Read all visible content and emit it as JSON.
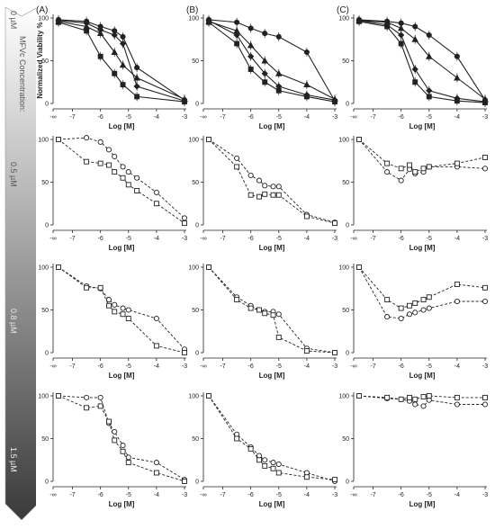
{
  "sidebar": {
    "title": "MFVc Concentration:",
    "rows": [
      "0 µM",
      "0.5 µM",
      "0.8 µM",
      "1.5 µM"
    ]
  },
  "columns": [
    "(A)",
    "(B)",
    "(C)"
  ],
  "axis": {
    "ylabel": "Normalized Viability %",
    "xlabel": "Log [M]",
    "xticks": [
      "-∞",
      "-7",
      "-6",
      "-5",
      "-4",
      "-3"
    ],
    "yticks": [
      "0",
      "50",
      "100"
    ]
  },
  "colors": {
    "line": "#222222",
    "marker_fill": "#ffffff",
    "axis": "#222222"
  },
  "chart_data": [
    {
      "type": "line",
      "title": "(A) 0 µM",
      "xlim": [
        -7.5,
        -3
      ],
      "ylim": [
        0,
        100
      ],
      "series": [
        {
          "marker": "circle",
          "x": [
            -7.5,
            -6.5,
            -6,
            -5.5,
            -5.2,
            -4.7,
            -3
          ],
          "y": [
            98,
            96,
            90,
            85,
            78,
            42,
            4
          ]
        },
        {
          "marker": "triangle",
          "x": [
            -7.5,
            -6.5,
            -6,
            -5.5,
            -5.2,
            -4.7,
            -3
          ],
          "y": [
            96,
            90,
            82,
            60,
            45,
            30,
            5
          ]
        },
        {
          "marker": "square",
          "x": [
            -7.5,
            -6.5,
            -6,
            -5.5,
            -5.2,
            -4.7,
            -3
          ],
          "y": [
            95,
            85,
            55,
            35,
            22,
            8,
            2
          ]
        },
        {
          "marker": "diamond",
          "x": [
            -7.5,
            -6.5,
            -6,
            -5.5,
            -5.2,
            -4.7,
            -3
          ],
          "y": [
            97,
            94,
            86,
            80,
            70,
            20,
            3
          ]
        }
      ]
    },
    {
      "type": "line",
      "title": "(B) 0 µM",
      "xlim": [
        -7.5,
        -3
      ],
      "ylim": [
        0,
        100
      ],
      "series": [
        {
          "marker": "circle",
          "x": [
            -7.5,
            -6.5,
            -6,
            -5.5,
            -5,
            -4,
            -3
          ],
          "y": [
            98,
            95,
            88,
            82,
            78,
            60,
            3
          ]
        },
        {
          "marker": "triangle",
          "x": [
            -7.5,
            -6.5,
            -6,
            -5.5,
            -5,
            -4,
            -3
          ],
          "y": [
            96,
            85,
            68,
            50,
            35,
            22,
            5
          ]
        },
        {
          "marker": "square",
          "x": [
            -7.5,
            -6.5,
            -6,
            -5.5,
            -5,
            -4,
            -3
          ],
          "y": [
            95,
            70,
            40,
            25,
            15,
            8,
            2
          ]
        },
        {
          "marker": "diamond",
          "x": [
            -7.5,
            -6.5,
            -6,
            -5.5,
            -5,
            -4,
            -3
          ],
          "y": [
            97,
            80,
            55,
            35,
            20,
            10,
            4
          ]
        }
      ]
    },
    {
      "type": "line",
      "title": "(C) 0 µM",
      "xlim": [
        -7.5,
        -3
      ],
      "ylim": [
        0,
        100
      ],
      "series": [
        {
          "marker": "circle",
          "x": [
            -7.5,
            -6.5,
            -6,
            -5.5,
            -5,
            -4,
            -3
          ],
          "y": [
            98,
            96,
            94,
            90,
            80,
            55,
            4
          ]
        },
        {
          "marker": "triangle",
          "x": [
            -7.5,
            -6.5,
            -6,
            -5.5,
            -5,
            -4,
            -3
          ],
          "y": [
            97,
            95,
            88,
            75,
            55,
            30,
            5
          ]
        },
        {
          "marker": "square",
          "x": [
            -7.5,
            -6.5,
            -6,
            -5.5,
            -5,
            -4,
            -3
          ],
          "y": [
            96,
            90,
            70,
            25,
            8,
            3,
            1
          ]
        },
        {
          "marker": "diamond",
          "x": [
            -7.5,
            -6.5,
            -6,
            -5.5,
            -5,
            -4,
            -3
          ],
          "y": [
            97,
            92,
            80,
            40,
            15,
            6,
            2
          ]
        }
      ]
    },
    {
      "type": "line",
      "title": "(A) 0.5 µM",
      "xlim": [
        -7.5,
        -3
      ],
      "ylim": [
        0,
        100
      ],
      "series": [
        {
          "marker": "circle",
          "x": [
            -7.5,
            -6.5,
            -6,
            -5.7,
            -5.5,
            -5.2,
            -5,
            -4.7,
            -4,
            -3
          ],
          "y": [
            100,
            102,
            97,
            88,
            80,
            68,
            62,
            55,
            38,
            8
          ]
        },
        {
          "marker": "square",
          "x": [
            -7.5,
            -6.5,
            -6,
            -5.7,
            -5.5,
            -5.2,
            -5,
            -4.7,
            -4,
            -3
          ],
          "y": [
            100,
            74,
            72,
            70,
            62,
            55,
            47,
            40,
            25,
            2
          ]
        }
      ]
    },
    {
      "type": "line",
      "title": "(B) 0.5 µM",
      "xlim": [
        -7.5,
        -3
      ],
      "ylim": [
        0,
        100
      ],
      "series": [
        {
          "marker": "circle",
          "x": [
            -7.5,
            -6.5,
            -6,
            -5.7,
            -5.5,
            -5.2,
            -5,
            -4,
            -3
          ],
          "y": [
            100,
            78,
            58,
            52,
            46,
            45,
            45,
            12,
            3
          ]
        },
        {
          "marker": "square",
          "x": [
            -7.5,
            -6.5,
            -6,
            -5.7,
            -5.5,
            -5.2,
            -5,
            -4,
            -3
          ],
          "y": [
            100,
            68,
            35,
            33,
            36,
            35,
            35,
            10,
            2
          ]
        }
      ]
    },
    {
      "type": "line",
      "title": "(C) 0.5 µM",
      "xlim": [
        -7.5,
        -3
      ],
      "ylim": [
        0,
        100
      ],
      "series": [
        {
          "marker": "circle",
          "x": [
            -7.5,
            -6.5,
            -6,
            -5.7,
            -5.5,
            -5.2,
            -5,
            -4,
            -3
          ],
          "y": [
            100,
            62,
            52,
            65,
            60,
            62,
            68,
            68,
            66
          ]
        },
        {
          "marker": "square",
          "x": [
            -7.5,
            -6.5,
            -6,
            -5.7,
            -5.5,
            -5.2,
            -5,
            -4,
            -3
          ],
          "y": [
            100,
            72,
            66,
            70,
            62,
            66,
            68,
            72,
            79
          ]
        }
      ]
    },
    {
      "type": "line",
      "title": "(A) 0.8 µM",
      "xlim": [
        -7.5,
        -3
      ],
      "ylim": [
        0,
        100
      ],
      "series": [
        {
          "marker": "circle",
          "x": [
            -7.5,
            -6.5,
            -6,
            -5.7,
            -5.5,
            -5.2,
            -5,
            -4,
            -3
          ],
          "y": [
            100,
            78,
            75,
            62,
            56,
            52,
            50,
            40,
            4
          ]
        },
        {
          "marker": "square",
          "x": [
            -7.5,
            -6.5,
            -6,
            -5.7,
            -5.5,
            -5.2,
            -5,
            -4,
            -3
          ],
          "y": [
            100,
            76,
            76,
            55,
            48,
            45,
            40,
            8,
            0
          ]
        }
      ]
    },
    {
      "type": "line",
      "title": "(B) 0.8 µM",
      "xlim": [
        -7.5,
        -3
      ],
      "ylim": [
        0,
        100
      ],
      "series": [
        {
          "marker": "circle",
          "x": [
            -7.5,
            -6.5,
            -6,
            -5.7,
            -5.5,
            -5.2,
            -5,
            -4,
            -3
          ],
          "y": [
            100,
            65,
            55,
            50,
            48,
            48,
            45,
            5,
            0
          ]
        },
        {
          "marker": "square",
          "x": [
            -7.5,
            -6.5,
            -6,
            -5.7,
            -5.5,
            -5.2,
            -5,
            -4,
            -3
          ],
          "y": [
            100,
            62,
            52,
            50,
            46,
            44,
            18,
            2,
            0
          ]
        }
      ]
    },
    {
      "type": "line",
      "title": "(C) 0.8 µM",
      "xlim": [
        -7.5,
        -3
      ],
      "ylim": [
        0,
        100
      ],
      "series": [
        {
          "marker": "circle",
          "x": [
            -7.5,
            -6.5,
            -6,
            -5.7,
            -5.5,
            -5.2,
            -5,
            -4,
            -3
          ],
          "y": [
            100,
            42,
            40,
            45,
            47,
            50,
            52,
            60,
            60
          ]
        },
        {
          "marker": "square",
          "x": [
            -7.5,
            -6.5,
            -6,
            -5.7,
            -5.5,
            -5.2,
            -5,
            -4,
            -3
          ],
          "y": [
            100,
            62,
            52,
            55,
            58,
            62,
            65,
            80,
            76
          ]
        }
      ]
    },
    {
      "type": "line",
      "title": "(A) 1.5 µM",
      "xlim": [
        -7.5,
        -3
      ],
      "ylim": [
        0,
        100
      ],
      "series": [
        {
          "marker": "circle",
          "x": [
            -7.5,
            -6.5,
            -6,
            -5.7,
            -5.5,
            -5.2,
            -5,
            -4,
            -3
          ],
          "y": [
            100,
            98,
            98,
            68,
            58,
            42,
            28,
            22,
            2
          ]
        },
        {
          "marker": "square",
          "x": [
            -7.5,
            -6.5,
            -6,
            -5.7,
            -5.5,
            -5.2,
            -5,
            -4,
            -3
          ],
          "y": [
            100,
            86,
            88,
            70,
            48,
            35,
            22,
            10,
            0
          ]
        }
      ]
    },
    {
      "type": "line",
      "title": "(B) 1.5 µM",
      "xlim": [
        -7.5,
        -3
      ],
      "ylim": [
        0,
        100
      ],
      "series": [
        {
          "marker": "circle",
          "x": [
            -7.5,
            -6.5,
            -6,
            -5.7,
            -5.5,
            -5.2,
            -5,
            -4,
            -3
          ],
          "y": [
            100,
            55,
            40,
            30,
            25,
            22,
            20,
            10,
            0
          ]
        },
        {
          "marker": "square",
          "x": [
            -7.5,
            -6.5,
            -6,
            -5.7,
            -5.5,
            -5.2,
            -5,
            -4,
            -3
          ],
          "y": [
            100,
            50,
            38,
            25,
            18,
            15,
            10,
            5,
            2
          ]
        }
      ]
    },
    {
      "type": "line",
      "title": "(C) 1.5 µM",
      "xlim": [
        -7.5,
        -3
      ],
      "ylim": [
        0,
        100
      ],
      "series": [
        {
          "marker": "circle",
          "x": [
            -7.5,
            -6.5,
            -6,
            -5.7,
            -5.5,
            -5.2,
            -5,
            -4,
            -3
          ],
          "y": [
            100,
            97,
            96,
            94,
            90,
            88,
            95,
            90,
            90
          ]
        },
        {
          "marker": "square",
          "x": [
            -7.5,
            -6.5,
            -6,
            -5.7,
            -5.5,
            -5.2,
            -5,
            -4,
            -3
          ],
          "y": [
            100,
            98,
            96,
            98,
            96,
            99,
            100,
            98,
            98
          ]
        }
      ]
    }
  ]
}
